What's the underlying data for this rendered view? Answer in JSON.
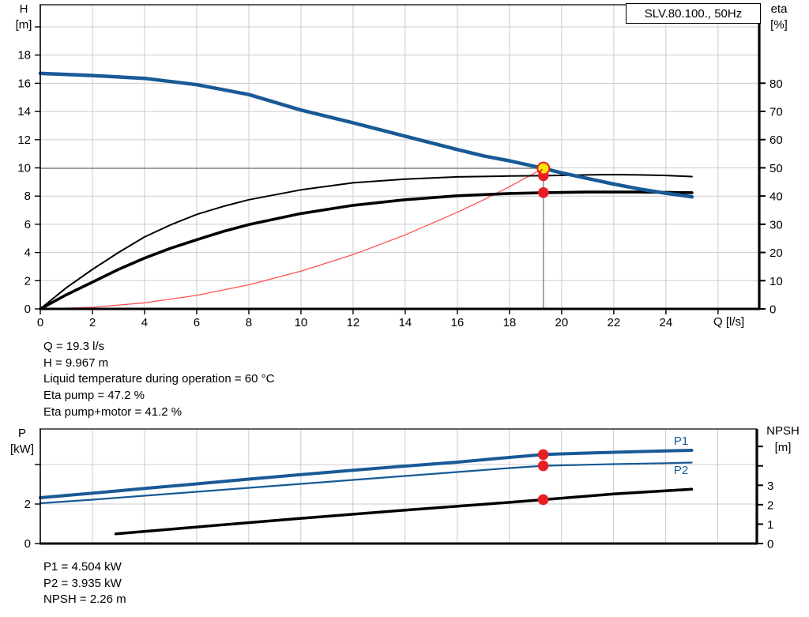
{
  "title_box": "SLV.80.100., 50Hz",
  "colors": {
    "curve_blue": "#185a96",
    "curve_black": "#000000",
    "curve_red": "#ff5050",
    "marker_red": "#e81e25",
    "marker_yellow": "#ffe400",
    "grid": "#cccccc",
    "crosshair": "#7d7d7d",
    "axis": "#000000"
  },
  "info_top": [
    "Q = 19.3 l/s",
    "H = 9.967 m",
    "Liquid temperature during operation = 60 °C",
    "Eta pump = 47.2 %",
    "Eta pump+motor = 41.2 %"
  ],
  "info_bottom": [
    "P1 = 4.504 kW",
    "P2 = 3.935 kW",
    "NPSH = 2.26 m"
  ],
  "chart_data": [
    {
      "type": "line",
      "title": "SLV.80.100., 50Hz",
      "xlabel": "Q [l/s]",
      "ylabel_left": "H [m]",
      "ylabel_left_lines": [
        "H",
        "[m]"
      ],
      "ylabel_right": "eta [%]",
      "ylabel_right_lines": [
        "eta",
        "[%]"
      ],
      "xlim": [
        0,
        27.58
      ],
      "ylim_left": [
        0,
        21.57
      ],
      "ylim_right": [
        0,
        107.8
      ],
      "xtick_labels": [
        0,
        2,
        4,
        6,
        8,
        10,
        12,
        14,
        16,
        18,
        20,
        22,
        24
      ],
      "xtick_marks": [
        0,
        2,
        4,
        6,
        8,
        10,
        12,
        14,
        16,
        18,
        20,
        22,
        24,
        26
      ],
      "ytick_labels_left": [
        0,
        2,
        4,
        6,
        8,
        10,
        12,
        14,
        16,
        18
      ],
      "ytick_marks_left": [
        0,
        2,
        4,
        6,
        8,
        10,
        12,
        14,
        16,
        18,
        20
      ],
      "ytick_labels_right": [
        0,
        10,
        20,
        30,
        40,
        50,
        60,
        70,
        80
      ],
      "ytick_marks_right": [
        0,
        10,
        20,
        30,
        40,
        50,
        60,
        70,
        80
      ],
      "grid": true,
      "legend_position": "none",
      "duty_point": {
        "Q": 19.3,
        "H": 9.967
      },
      "series": [
        {
          "name": "system-curve",
          "axis": "left",
          "color": "#ff5050",
          "width": 1.3,
          "values": [
            [
              0,
              0
            ],
            [
              2,
              0.11
            ],
            [
              4,
              0.43
            ],
            [
              6,
              0.96
            ],
            [
              8,
              1.71
            ],
            [
              10,
              2.68
            ],
            [
              12,
              3.85
            ],
            [
              14,
              5.25
            ],
            [
              16,
              6.85
            ],
            [
              17,
              7.73
            ],
            [
              18,
              8.67
            ],
            [
              19.3,
              9.967
            ]
          ]
        },
        {
          "name": "eta-pump",
          "axis": "right",
          "color": "#000000",
          "width": 2,
          "values": [
            [
              0,
              0
            ],
            [
              1,
              7.5
            ],
            [
              2,
              14
            ],
            [
              3,
              20
            ],
            [
              4,
              25.5
            ],
            [
              5,
              29.8
            ],
            [
              6,
              33.5
            ],
            [
              7,
              36.3
            ],
            [
              8,
              38.7
            ],
            [
              10,
              42.2
            ],
            [
              12,
              44.7
            ],
            [
              14,
              46.0
            ],
            [
              16,
              46.8
            ],
            [
              18,
              47.1
            ],
            [
              19.3,
              47.2
            ],
            [
              21,
              47.5
            ],
            [
              22,
              47.6
            ],
            [
              23,
              47.5
            ],
            [
              24,
              47.3
            ],
            [
              25,
              46.9
            ]
          ]
        },
        {
          "name": "eta-pump-motor",
          "axis": "right",
          "color": "#000000",
          "width": 3.6,
          "values": [
            [
              0,
              0
            ],
            [
              1,
              5
            ],
            [
              2,
              9.5
            ],
            [
              3,
              14
            ],
            [
              4,
              18
            ],
            [
              5,
              21.5
            ],
            [
              6,
              24.5
            ],
            [
              7,
              27.4
            ],
            [
              8,
              29.9
            ],
            [
              10,
              33.8
            ],
            [
              12,
              36.7
            ],
            [
              14,
              38.7
            ],
            [
              16,
              40.1
            ],
            [
              18,
              40.9
            ],
            [
              19.3,
              41.2
            ],
            [
              21,
              41.4
            ],
            [
              23,
              41.4
            ],
            [
              25,
              41.2
            ]
          ]
        },
        {
          "name": "head",
          "axis": "left",
          "color": "#185a96",
          "width": 4.5,
          "values": [
            [
              0,
              16.7
            ],
            [
              2,
              16.55
            ],
            [
              4,
              16.35
            ],
            [
              6,
              15.9
            ],
            [
              8,
              15.2
            ],
            [
              10,
              14.1
            ],
            [
              12,
              13.2
            ],
            [
              14,
              12.25
            ],
            [
              16,
              11.3
            ],
            [
              17,
              10.85
            ],
            [
              18,
              10.5
            ],
            [
              19.3,
              9.967
            ],
            [
              20,
              9.65
            ],
            [
              21,
              9.25
            ],
            [
              22,
              8.85
            ],
            [
              23,
              8.5
            ],
            [
              24,
              8.2
            ],
            [
              25,
              7.95
            ]
          ]
        }
      ],
      "markers": [
        {
          "q": 19.3,
          "value": 41.2,
          "axis": "right",
          "style": "dot"
        },
        {
          "q": 19.3,
          "value": 47.2,
          "axis": "right",
          "style": "dot"
        },
        {
          "q": 19.3,
          "value": 9.967,
          "axis": "left",
          "style": "target"
        }
      ]
    },
    {
      "type": "line",
      "title": "",
      "xlabel": "",
      "ylabel_left": "P [kW]",
      "ylabel_left_lines": [
        "P",
        "[kW]"
      ],
      "ylabel_right": "NPSH [m]",
      "ylabel_right_lines": [
        "NPSH",
        "[m]"
      ],
      "xlim": [
        0,
        27.5
      ],
      "ylim_left": [
        0,
        5.8
      ],
      "ylim_right": [
        0,
        5.9
      ],
      "xtick_labels": [],
      "xtick_marks": [
        0,
        2,
        4,
        6,
        8,
        10,
        12,
        14,
        16,
        18,
        20,
        22,
        24,
        26
      ],
      "ytick_labels_left": [
        0,
        2
      ],
      "ytick_marks_left": [
        0,
        2,
        4
      ],
      "ytick_labels_right": [
        0,
        1,
        2,
        3
      ],
      "ytick_marks_right": [
        0,
        1,
        2,
        3,
        4,
        5
      ],
      "grid": true,
      "legend_position": "inline-right",
      "series": [
        {
          "name": "P1",
          "axis": "left",
          "color": "#185a96",
          "width": 4,
          "values": [
            [
              0,
              2.32
            ],
            [
              2,
              2.55
            ],
            [
              4,
              2.79
            ],
            [
              6,
              3.02
            ],
            [
              8,
              3.26
            ],
            [
              10,
              3.49
            ],
            [
              12,
              3.71
            ],
            [
              14,
              3.92
            ],
            [
              16,
              4.12
            ],
            [
              18,
              4.36
            ],
            [
              19.3,
              4.504
            ],
            [
              20,
              4.54
            ],
            [
              22,
              4.62
            ],
            [
              24,
              4.69
            ],
            [
              25,
              4.72
            ]
          ]
        },
        {
          "name": "P2",
          "axis": "left",
          "color": "#185a96",
          "width": 2.2,
          "values": [
            [
              0,
              2.04
            ],
            [
              2,
              2.22
            ],
            [
              4,
              2.42
            ],
            [
              6,
              2.62
            ],
            [
              8,
              2.82
            ],
            [
              10,
              3.02
            ],
            [
              12,
              3.22
            ],
            [
              14,
              3.42
            ],
            [
              16,
              3.62
            ],
            [
              18,
              3.82
            ],
            [
              19.3,
              3.935
            ],
            [
              20,
              3.96
            ],
            [
              22,
              4.02
            ],
            [
              24,
              4.07
            ],
            [
              25,
              4.1
            ]
          ]
        },
        {
          "name": "NPSH",
          "axis": "right",
          "color": "#000000",
          "width": 3.5,
          "values": [
            [
              2.9,
              0.5
            ],
            [
              6,
              0.85
            ],
            [
              10,
              1.3
            ],
            [
              14,
              1.72
            ],
            [
              18,
              2.12
            ],
            [
              19.3,
              2.26
            ],
            [
              22,
              2.55
            ],
            [
              25,
              2.8
            ]
          ]
        }
      ],
      "markers": [
        {
          "q": 19.3,
          "value": 4.504,
          "axis": "left",
          "style": "dot"
        },
        {
          "q": 19.3,
          "value": 3.935,
          "axis": "left",
          "style": "dot"
        },
        {
          "q": 19.3,
          "value": 2.26,
          "axis": "right",
          "style": "dot"
        }
      ]
    }
  ]
}
